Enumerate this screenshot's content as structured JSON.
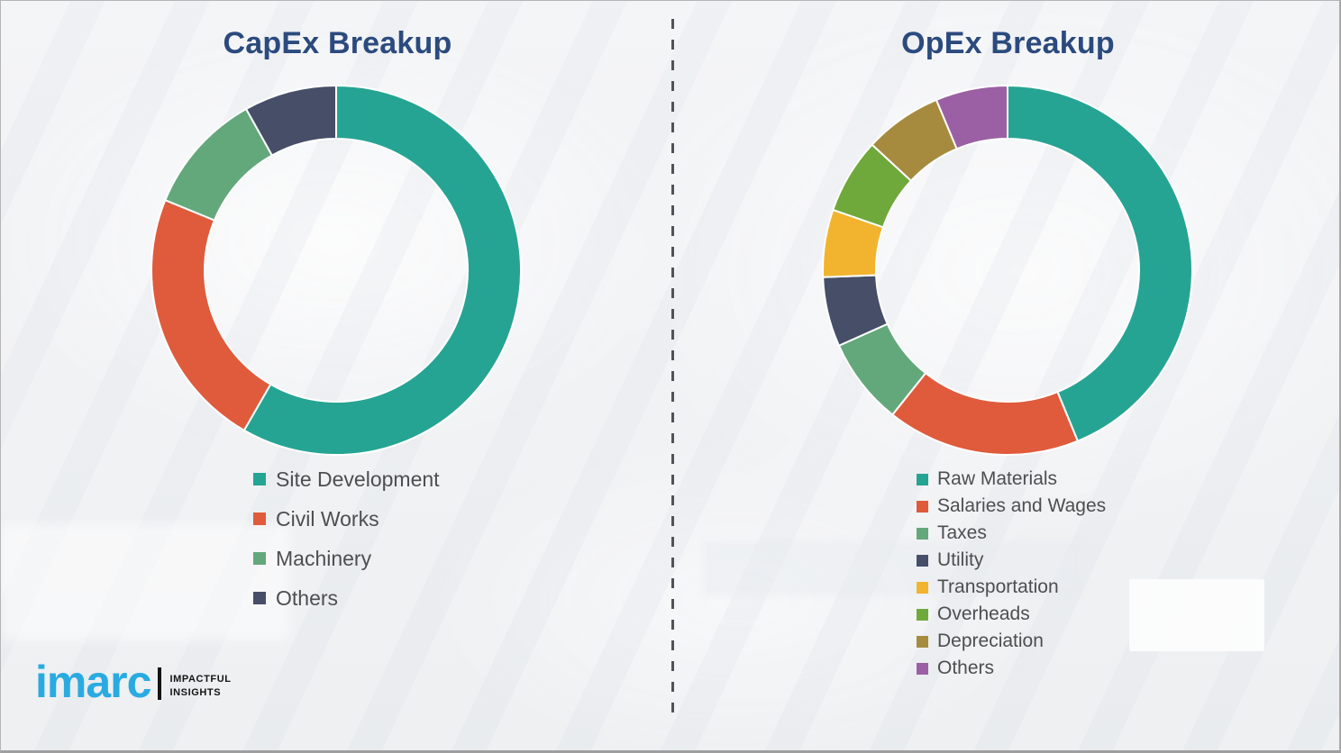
{
  "brand": {
    "wordmark": "imarc",
    "tagline_line1": "IMPACTFUL",
    "tagline_line2": "INSIGHTS",
    "wordmark_color": "#29ABE2",
    "title_color": "#2B4A7E",
    "legend_text_color": "#4E4E50",
    "divider_color": "#4F5357"
  },
  "chart_data": [
    {
      "type": "pie",
      "variant": "donut",
      "title": "CapEx Breakup",
      "start_angle_deg": 0,
      "direction": "clockwise",
      "legend_position": "bottom",
      "categories": [
        "Site Development",
        "Civil Works",
        "Machinery",
        "Others"
      ],
      "values": [
        58.3,
        22.9,
        10.7,
        8.1
      ],
      "colors": [
        "#26A493",
        "#DF5B3C",
        "#63A87B",
        "#474E68"
      ]
    },
    {
      "type": "pie",
      "variant": "donut",
      "title": "OpEx Breakup",
      "start_angle_deg": 0,
      "direction": "clockwise",
      "legend_position": "bottom",
      "categories": [
        "Raw Materials",
        "Salaries and Wages",
        "Taxes",
        "Utility",
        "Transportation",
        "Overheads",
        "Depreciation",
        "Others"
      ],
      "values": [
        43.8,
        16.9,
        7.6,
        6.1,
        5.9,
        6.6,
        6.8,
        6.3
      ],
      "colors": [
        "#26A493",
        "#DF5B3C",
        "#63A87B",
        "#474E68",
        "#F2B42F",
        "#6FA93C",
        "#A68B3F",
        "#9B60A4"
      ]
    }
  ]
}
